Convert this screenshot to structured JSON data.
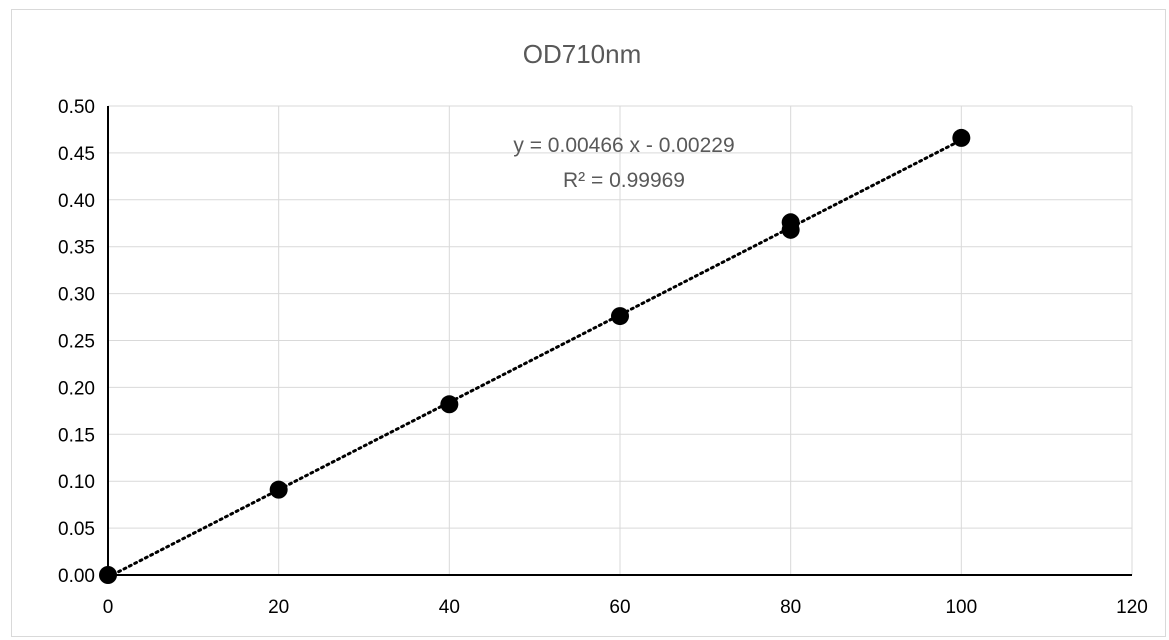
{
  "chart_data": {
    "type": "scatter",
    "title": "OD710nm",
    "xlabel": "",
    "ylabel": "",
    "xlim": [
      0,
      120
    ],
    "ylim": [
      0,
      0.5
    ],
    "x_ticks": [
      "0",
      "20",
      "40",
      "60",
      "80",
      "100",
      "120"
    ],
    "y_ticks": [
      "0.00",
      "0.05",
      "0.10",
      "0.15",
      "0.20",
      "0.25",
      "0.30",
      "0.35",
      "0.40",
      "0.45",
      "0.50"
    ],
    "grid": true,
    "legend": "none",
    "series": [
      {
        "x": [
          0,
          20,
          40,
          60,
          80,
          80,
          100
        ],
        "y": [
          0.0,
          0.091,
          0.182,
          0.276,
          0.376,
          0.368,
          0.466
        ],
        "color": "#000000"
      }
    ],
    "trendline": {
      "type": "linear",
      "slope": 0.00466,
      "intercept": -0.00229,
      "style": "dotted",
      "color": "#000000",
      "equation_label": "y = 0.00466 x - 0.00229",
      "r2_label": "R² = 0.99969"
    }
  }
}
